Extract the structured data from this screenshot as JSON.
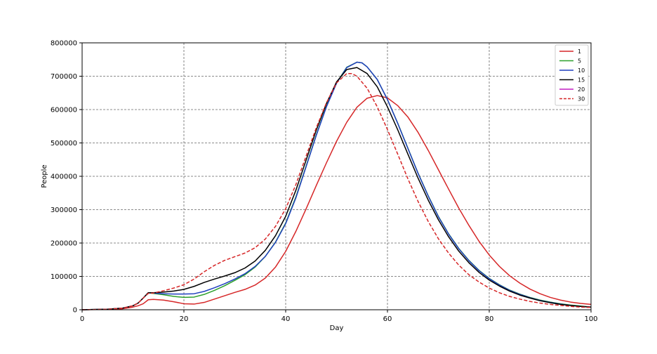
{
  "chart_data": {
    "type": "line",
    "title": "",
    "xlabel": "Day",
    "ylabel": "People",
    "xlim": [
      0,
      100
    ],
    "ylim": [
      0,
      800000
    ],
    "xticks": [
      0,
      20,
      40,
      60,
      80,
      100
    ],
    "xtick_labels": [
      "0",
      "20",
      "40",
      "60",
      "80",
      "100"
    ],
    "yticks": [
      0,
      100000,
      200000,
      300000,
      400000,
      500000,
      600000,
      700000,
      800000
    ],
    "ytick_labels": [
      "0",
      "100000",
      "200000",
      "300000",
      "400000",
      "500000",
      "600000",
      "700000",
      "800000"
    ],
    "grid": true,
    "legend_position": "top-right",
    "series": [
      {
        "name": "1",
        "color": "#d62728",
        "dash": "solid",
        "x": [
          0,
          5,
          8,
          10,
          11,
          12,
          13,
          14,
          15,
          16,
          18,
          20,
          22,
          24,
          26,
          28,
          30,
          32,
          34,
          36,
          38,
          40,
          42,
          44,
          46,
          48,
          50,
          52,
          54,
          56,
          58,
          60,
          62,
          64,
          66,
          68,
          70,
          72,
          74,
          76,
          78,
          80,
          82,
          84,
          86,
          88,
          90,
          92,
          94,
          96,
          98,
          100
        ],
        "y": [
          0,
          1000,
          3000,
          8000,
          12000,
          18000,
          30000,
          31000,
          30000,
          29000,
          24000,
          18000,
          17000,
          22000,
          32000,
          42000,
          52000,
          61000,
          74000,
          95000,
          128000,
          175000,
          235000,
          302000,
          372000,
          440000,
          505000,
          562000,
          607000,
          634000,
          642000,
          635000,
          612000,
          578000,
          532000,
          478000,
          420000,
          362000,
          305000,
          253000,
          205000,
          164000,
          130000,
          102000,
          80000,
          62000,
          48000,
          37000,
          29000,
          23000,
          19000,
          16000
        ]
      },
      {
        "name": "5",
        "color": "#2ca02c",
        "dash": "solid",
        "x": [
          0,
          5,
          8,
          10,
          11,
          12,
          13,
          14,
          16,
          18,
          20,
          22,
          24,
          26,
          28,
          30,
          32,
          34,
          36,
          38,
          40,
          42,
          44,
          46,
          48,
          50,
          52,
          54,
          55,
          56,
          58,
          60,
          62,
          64,
          66,
          68,
          70,
          72,
          74,
          76,
          78,
          80,
          82,
          84,
          86,
          88,
          90,
          92,
          94,
          96,
          98,
          100
        ],
        "y": [
          0,
          1500,
          5000,
          12000,
          20000,
          35000,
          51000,
          49000,
          45000,
          40000,
          37000,
          38000,
          46000,
          58000,
          72000,
          88000,
          105000,
          128000,
          160000,
          203000,
          260000,
          338000,
          430000,
          524000,
          610000,
          680000,
          727000,
          742000,
          740000,
          728000,
          690000,
          630000,
          560000,
          485000,
          410000,
          342000,
          280000,
          228000,
          184000,
          148000,
          118000,
          94000,
          75000,
          59000,
          47000,
          37000,
          29000,
          23000,
          18000,
          14000,
          11000,
          8000
        ]
      },
      {
        "name": "10",
        "color": "#1f3fbf",
        "dash": "solid",
        "x": [
          0,
          5,
          8,
          10,
          11,
          12,
          13,
          14,
          16,
          18,
          20,
          22,
          24,
          26,
          28,
          30,
          32,
          34,
          36,
          38,
          40,
          42,
          44,
          46,
          48,
          50,
          52,
          54,
          55,
          56,
          58,
          60,
          62,
          64,
          66,
          68,
          70,
          72,
          74,
          76,
          78,
          80,
          82,
          84,
          86,
          88,
          90,
          92,
          94,
          96,
          98,
          100
        ],
        "y": [
          0,
          1500,
          5000,
          12000,
          20000,
          35000,
          51000,
          50000,
          48000,
          47000,
          47000,
          48000,
          55000,
          66000,
          78000,
          92000,
          108000,
          130000,
          160000,
          202000,
          258000,
          335000,
          428000,
          522000,
          608000,
          679000,
          726000,
          742000,
          740000,
          728000,
          690000,
          630000,
          559000,
          484000,
          409000,
          341000,
          279000,
          227000,
          183000,
          147000,
          117000,
          93000,
          74000,
          58000,
          46000,
          36000,
          28000,
          22000,
          17000,
          13000,
          10000,
          8000
        ]
      },
      {
        "name": "15",
        "color": "#000000",
        "dash": "solid",
        "x": [
          0,
          5,
          8,
          10,
          11,
          12,
          13,
          14,
          16,
          18,
          20,
          22,
          24,
          26,
          28,
          30,
          32,
          34,
          36,
          38,
          40,
          42,
          44,
          46,
          48,
          50,
          52,
          54,
          56,
          58,
          60,
          62,
          64,
          66,
          68,
          70,
          72,
          74,
          76,
          78,
          80,
          82,
          84,
          86,
          88,
          90,
          92,
          94,
          96,
          98,
          100
        ],
        "y": [
          0,
          1500,
          5000,
          12000,
          20000,
          35000,
          51000,
          51000,
          53000,
          56000,
          61000,
          70000,
          82000,
          92000,
          101000,
          111000,
          125000,
          146000,
          178000,
          222000,
          280000,
          358000,
          448000,
          538000,
          618000,
          683000,
          720000,
          726000,
          708000,
          668000,
          608000,
          540000,
          467000,
          395000,
          329000,
          270000,
          219000,
          176000,
          141000,
          112000,
          89000,
          71000,
          56000,
          44000,
          35000,
          27000,
          21000,
          16000,
          13000,
          10000,
          8000
        ]
      },
      {
        "name": "20",
        "color": "#c21fc2",
        "dash": "solid",
        "x": [],
        "y": []
      },
      {
        "name": "30",
        "color": "#d62728",
        "dash": "dashed",
        "x": [
          0,
          5,
          8,
          10,
          11,
          12,
          13,
          14,
          16,
          18,
          20,
          22,
          24,
          26,
          28,
          30,
          32,
          34,
          36,
          38,
          40,
          42,
          44,
          46,
          48,
          50,
          52,
          53,
          54,
          56,
          58,
          60,
          62,
          64,
          66,
          68,
          70,
          72,
          74,
          76,
          78,
          80,
          82,
          84,
          86,
          88,
          90,
          92,
          94,
          96,
          98,
          100
        ],
        "y": [
          0,
          1500,
          5000,
          12000,
          20000,
          35000,
          49000,
          50000,
          57000,
          65000,
          75000,
          92000,
          114000,
          133000,
          148000,
          159000,
          170000,
          186000,
          212000,
          250000,
          303000,
          375000,
          460000,
          545000,
          620000,
          680000,
          708000,
          708000,
          700000,
          664000,
          608000,
          540000,
          467000,
          393000,
          325000,
          265000,
          213000,
          170000,
          134000,
          105000,
          83000,
          65000,
          51000,
          40000,
          32000,
          25000,
          20000,
          16000,
          13000,
          10000,
          8000,
          7000
        ]
      }
    ]
  }
}
